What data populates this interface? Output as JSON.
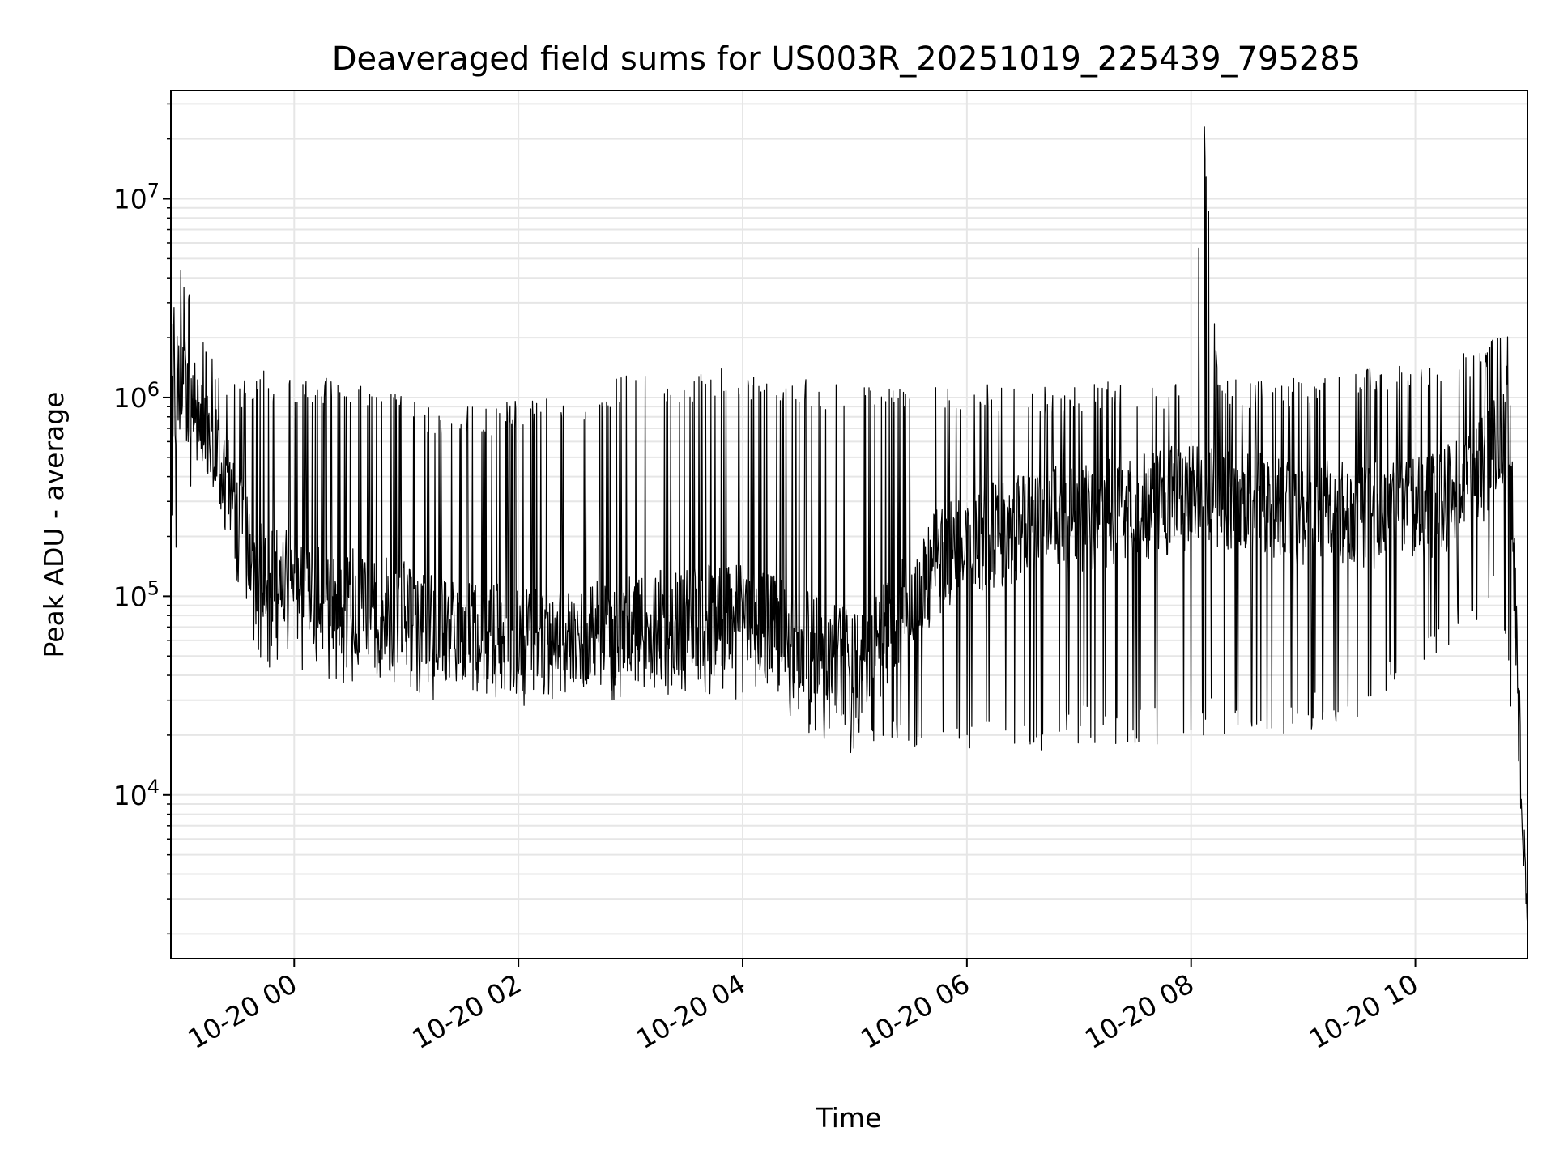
{
  "chart_data": {
    "type": "line",
    "title": "Deaveraged field sums for US003R_20251019_225439_795285",
    "xlabel": "Time",
    "ylabel": "Peak ADU - average",
    "y_scale": "log",
    "ylim": [
      1500,
      35000000
    ],
    "xlim": [
      "2025-10-19 22:54",
      "2025-10-20 11:00"
    ],
    "x_ticks": [
      {
        "label": "10-20 00",
        "time": "2025-10-20 00:00"
      },
      {
        "label": "10-20 02",
        "time": "2025-10-20 02:00"
      },
      {
        "label": "10-20 04",
        "time": "2025-10-20 04:00"
      },
      {
        "label": "10-20 06",
        "time": "2025-10-20 06:00"
      },
      {
        "label": "10-20 08",
        "time": "2025-10-20 08:00"
      },
      {
        "label": "10-20 10",
        "time": "2025-10-20 10:00"
      }
    ],
    "y_ticks": [
      {
        "base": "10",
        "exp": "4",
        "value": 10000
      },
      {
        "base": "10",
        "exp": "5",
        "value": 100000
      },
      {
        "base": "10",
        "exp": "6",
        "value": 1000000
      },
      {
        "base": "10",
        "exp": "7",
        "value": 10000000
      }
    ],
    "grid": true,
    "line_color": "#000000",
    "grid_color": "#e6e6e6",
    "series": [
      {
        "x": [
          "2025-10-19 22:54",
          "2025-10-19 23:00",
          "2025-10-19 23:05",
          "2025-10-19 23:10",
          "2025-10-19 23:20",
          "2025-10-19 23:30",
          "2025-10-19 23:40",
          "2025-10-19 23:50",
          "2025-10-20 00:00",
          "2025-10-20 00:15",
          "2025-10-20 00:30",
          "2025-10-20 00:45",
          "2025-10-20 01:00",
          "2025-10-20 01:15",
          "2025-10-20 01:30",
          "2025-10-20 01:45",
          "2025-10-20 02:00",
          "2025-10-20 02:15",
          "2025-10-20 02:30",
          "2025-10-20 02:45",
          "2025-10-20 03:00",
          "2025-10-20 03:15",
          "2025-10-20 03:30",
          "2025-10-20 03:45",
          "2025-10-20 04:00",
          "2025-10-20 04:15",
          "2025-10-20 04:30",
          "2025-10-20 04:45",
          "2025-10-20 05:00",
          "2025-10-20 05:15",
          "2025-10-20 05:30",
          "2025-10-20 05:45",
          "2025-10-20 06:00",
          "2025-10-20 06:15",
          "2025-10-20 06:30",
          "2025-10-20 06:45",
          "2025-10-20 07:00",
          "2025-10-20 07:15",
          "2025-10-20 07:30",
          "2025-10-20 07:45",
          "2025-10-20 08:00",
          "2025-10-20 08:07",
          "2025-10-20 08:15",
          "2025-10-20 08:30",
          "2025-10-20 08:45",
          "2025-10-20 09:00",
          "2025-10-20 09:15",
          "2025-10-20 09:30",
          "2025-10-20 09:45",
          "2025-10-20 10:00",
          "2025-10-20 10:15",
          "2025-10-20 10:30",
          "2025-10-20 10:45",
          "2025-10-20 10:50",
          "2025-10-20 10:55",
          "2025-10-20 11:00"
        ],
        "low": [
          200000,
          150000,
          300000,
          500000,
          300000,
          100000,
          50000,
          40000,
          40000,
          35000,
          35000,
          35000,
          35000,
          30000,
          30000,
          30000,
          28000,
          28000,
          30000,
          30000,
          30000,
          30000,
          30000,
          30000,
          30000,
          28000,
          22000,
          18000,
          16000,
          17000,
          17000,
          16000,
          16000,
          15000,
          14000,
          17000,
          18000,
          18000,
          18000,
          18000,
          20000,
          20000,
          20000,
          18000,
          20000,
          20000,
          22000,
          25000,
          30000,
          35000,
          50000,
          70000,
          100000,
          30000,
          10000,
          2200
        ],
        "high": [
          3000000,
          5500000,
          3500000,
          2200000,
          1500000,
          1200000,
          1400000,
          1300000,
          1300000,
          1300000,
          1300000,
          1200000,
          1000000,
          900000,
          900000,
          900000,
          1000000,
          1000000,
          1000000,
          1100000,
          1400000,
          1300000,
          1300000,
          1400000,
          1400000,
          1300000,
          1300000,
          1200000,
          1150000,
          1150000,
          1200000,
          1200000,
          1200000,
          1200000,
          1150000,
          1150000,
          1150000,
          1200000,
          1200000,
          1200000,
          1300000,
          23000000,
          1300000,
          1250000,
          1200000,
          1300000,
          1350000,
          1400000,
          1450000,
          1500000,
          1600000,
          1800000,
          2000000,
          2500000,
          60000,
          2200
        ],
        "typical": [
          1000000,
          1200000,
          900000,
          800000,
          500000,
          250000,
          150000,
          120000,
          110000,
          100000,
          95000,
          85000,
          80000,
          70000,
          65000,
          65000,
          60000,
          60000,
          65000,
          70000,
          70000,
          72000,
          75000,
          78000,
          80000,
          70000,
          60000,
          50000,
          45000,
          60000,
          100000,
          150000,
          200000,
          200000,
          220000,
          240000,
          250000,
          260000,
          280000,
          300000,
          320000,
          320000,
          320000,
          300000,
          280000,
          270000,
          260000,
          250000,
          260000,
          280000,
          300000,
          350000,
          600000,
          900000,
          30000,
          2200
        ]
      }
    ]
  }
}
